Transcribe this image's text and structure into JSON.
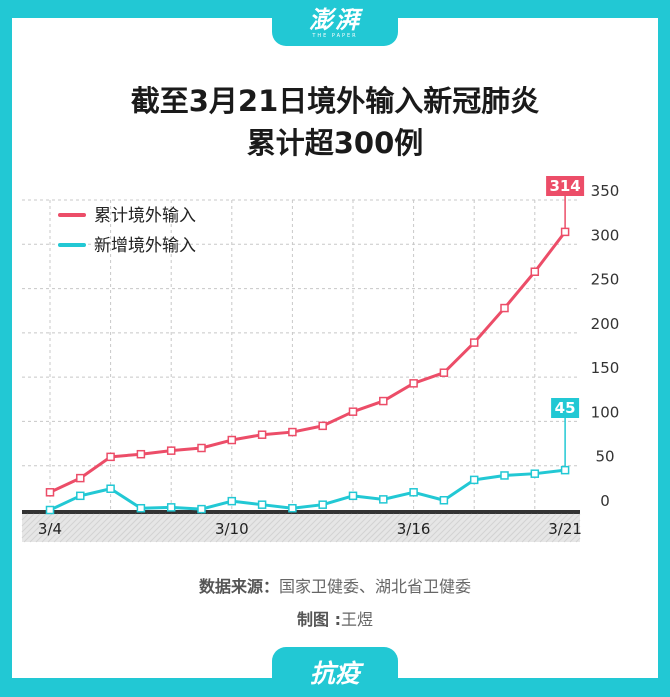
{
  "brand": {
    "logo_text": "澎湃",
    "logo_sub": "THE PAPER"
  },
  "title": {
    "line1": "截至3月21日境外输入新冠肺炎",
    "line2": "累计超300例"
  },
  "footer": {
    "source_label": "数据来源：",
    "source_text": "国家卫健委、湖北省卫健委",
    "maker_label": "制图 :",
    "maker_text": "王煜",
    "tag": "抗疫"
  },
  "colors": {
    "accent": "#22c8d4",
    "cumulative": "#ec4d68",
    "daily": "#22c8d4"
  },
  "chart_data": {
    "type": "line",
    "x": [
      "3/4",
      "3/5",
      "3/6",
      "3/7",
      "3/8",
      "3/9",
      "3/10",
      "3/11",
      "3/12",
      "3/13",
      "3/14",
      "3/15",
      "3/16",
      "3/17",
      "3/18",
      "3/19",
      "3/20",
      "3/21"
    ],
    "x_tick_labels": [
      "3/4",
      "3/10",
      "3/16",
      "3/21"
    ],
    "ylim": [
      0,
      350
    ],
    "y_ticks": [
      0,
      50,
      100,
      150,
      200,
      250,
      300,
      350
    ],
    "grid": true,
    "legend_position": "top-left",
    "series": [
      {
        "name": "新增境外输入",
        "color": "#22c8d4",
        "values": [
          0,
          16,
          24,
          2,
          3,
          1,
          10,
          6,
          2,
          6,
          16,
          12,
          20,
          11,
          34,
          39,
          41,
          45
        ]
      },
      {
        "name": "累计境外输入",
        "color": "#ec4d68",
        "values": [
          20,
          36,
          60,
          63,
          67,
          70,
          79,
          85,
          88,
          95,
          111,
          123,
          143,
          155,
          189,
          228,
          269,
          314
        ]
      }
    ],
    "annotations": [
      {
        "series": "累计境外输入",
        "x": "3/21",
        "label": "314"
      },
      {
        "series": "新增境外输入",
        "x": "3/21",
        "label": "45"
      }
    ]
  }
}
